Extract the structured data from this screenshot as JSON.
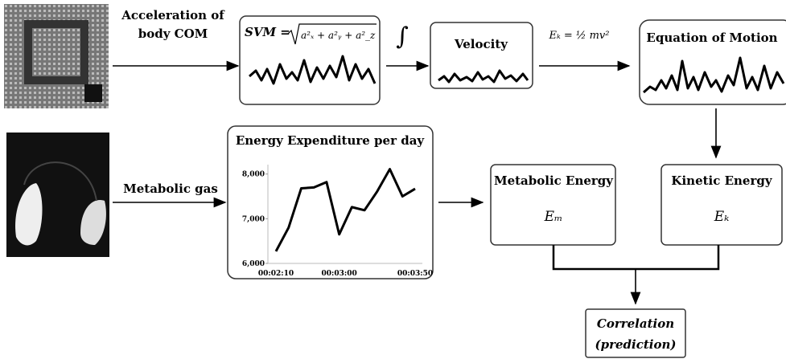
{
  "top_row": {
    "input_label": [
      "Acceleration of",
      "body COM"
    ],
    "svm_formula": {
      "lhs": "SVM =",
      "radicand": "a²ₓ + a²ᵧ + a²_z"
    },
    "integral": "∫",
    "velocity": "Velocity",
    "kinetic_formula": "Eₖ = ½ mv²",
    "equation_of_motion": "Equation of Motion"
  },
  "bottom_row": {
    "input_label": "Metabolic gas",
    "metabolic_energy": {
      "title": "Metabolic Energy",
      "symbol": "Eₘ"
    },
    "kinetic_energy": {
      "title": "Kinetic Energy",
      "symbol": "Eₖ"
    },
    "correlation": [
      "Correlation",
      "(prediction)"
    ]
  },
  "chart_data": {
    "type": "line",
    "title": "Energy Expenditure per day",
    "categories": [
      "00:02:10",
      null,
      null,
      null,
      null,
      "00:03:00",
      null,
      null,
      null,
      null,
      null,
      "00:03:50"
    ],
    "values": [
      6270,
      6800,
      7680,
      7700,
      7820,
      6650,
      7260,
      7190,
      7610,
      8110,
      7500,
      7670
    ],
    "color": "#000000",
    "ylim": [
      6000,
      8300
    ],
    "yticks": [
      {
        "value": 6000,
        "label": "6,000"
      },
      {
        "value": 7000,
        "label": "7,000"
      },
      {
        "value": 8000,
        "label": "8,000"
      }
    ]
  }
}
